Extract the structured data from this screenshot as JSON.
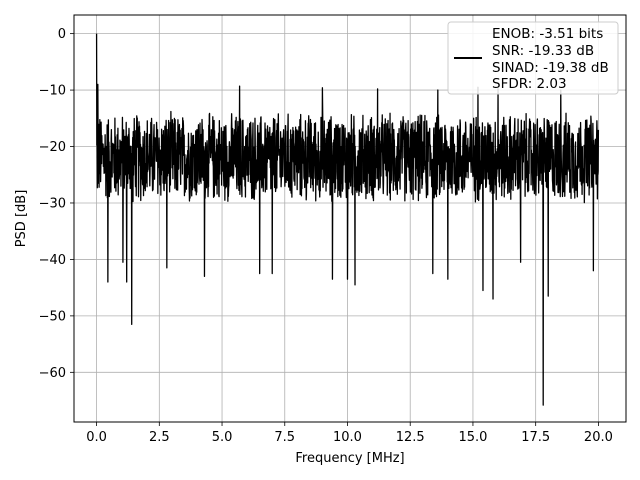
{
  "chart_data": {
    "type": "line",
    "title": "",
    "xlabel": "Frequency [MHz]",
    "ylabel": "PSD [dB]",
    "xlim": [
      -0.9,
      21.1
    ],
    "ylim": [
      -68.8,
      3.3
    ],
    "xticks": [
      0.0,
      2.5,
      5.0,
      7.5,
      10.0,
      12.5,
      15.0,
      17.5,
      20.0
    ],
    "xtick_labels": [
      "0.0",
      "2.5",
      "5.0",
      "7.5",
      "10.0",
      "12.5",
      "15.0",
      "17.5",
      "20.0"
    ],
    "yticks": [
      0,
      -10,
      -20,
      -30,
      -40,
      -50,
      -60
    ],
    "ytick_labels": [
      "0",
      "−10",
      "−20",
      "−30",
      "−40",
      "−50",
      "−60"
    ],
    "grid": true,
    "legend": {
      "position": "top-right",
      "entries": [
        "ENOB: -3.51 bits",
        "SNR: -19.33 dB",
        "SINAD: -19.38 dB",
        "SFDR: 2.03"
      ]
    },
    "series": [
      {
        "color": "#000000",
        "x_range": [
          0.0,
          20.0
        ],
        "typical_band_db": [
          -30.5,
          -13.5
        ],
        "peaks": [
          {
            "x": 0.0,
            "y": 0.0
          },
          {
            "x": 0.05,
            "y": -9.0
          },
          {
            "x": 5.7,
            "y": -9.3
          },
          {
            "x": 9.0,
            "y": -9.6
          },
          {
            "x": 11.2,
            "y": -9.8
          },
          {
            "x": 13.6,
            "y": -10.0
          },
          {
            "x": 15.2,
            "y": -9.5
          },
          {
            "x": 16.0,
            "y": -9.8
          },
          {
            "x": 18.5,
            "y": -10.0
          }
        ],
        "dips": [
          {
            "x": 0.45,
            "y": -44.0
          },
          {
            "x": 1.05,
            "y": -40.5
          },
          {
            "x": 1.2,
            "y": -44.0
          },
          {
            "x": 1.4,
            "y": -51.5
          },
          {
            "x": 2.8,
            "y": -41.5
          },
          {
            "x": 4.3,
            "y": -43.0
          },
          {
            "x": 6.5,
            "y": -42.5
          },
          {
            "x": 7.0,
            "y": -42.5
          },
          {
            "x": 9.4,
            "y": -43.5
          },
          {
            "x": 10.0,
            "y": -43.5
          },
          {
            "x": 10.3,
            "y": -44.5
          },
          {
            "x": 13.4,
            "y": -42.5
          },
          {
            "x": 14.0,
            "y": -43.5
          },
          {
            "x": 15.4,
            "y": -45.5
          },
          {
            "x": 15.8,
            "y": -47.0
          },
          {
            "x": 16.9,
            "y": -40.5
          },
          {
            "x": 17.8,
            "y": -65.8
          },
          {
            "x": 18.0,
            "y": -46.5
          },
          {
            "x": 19.8,
            "y": -42.0
          }
        ]
      }
    ]
  }
}
